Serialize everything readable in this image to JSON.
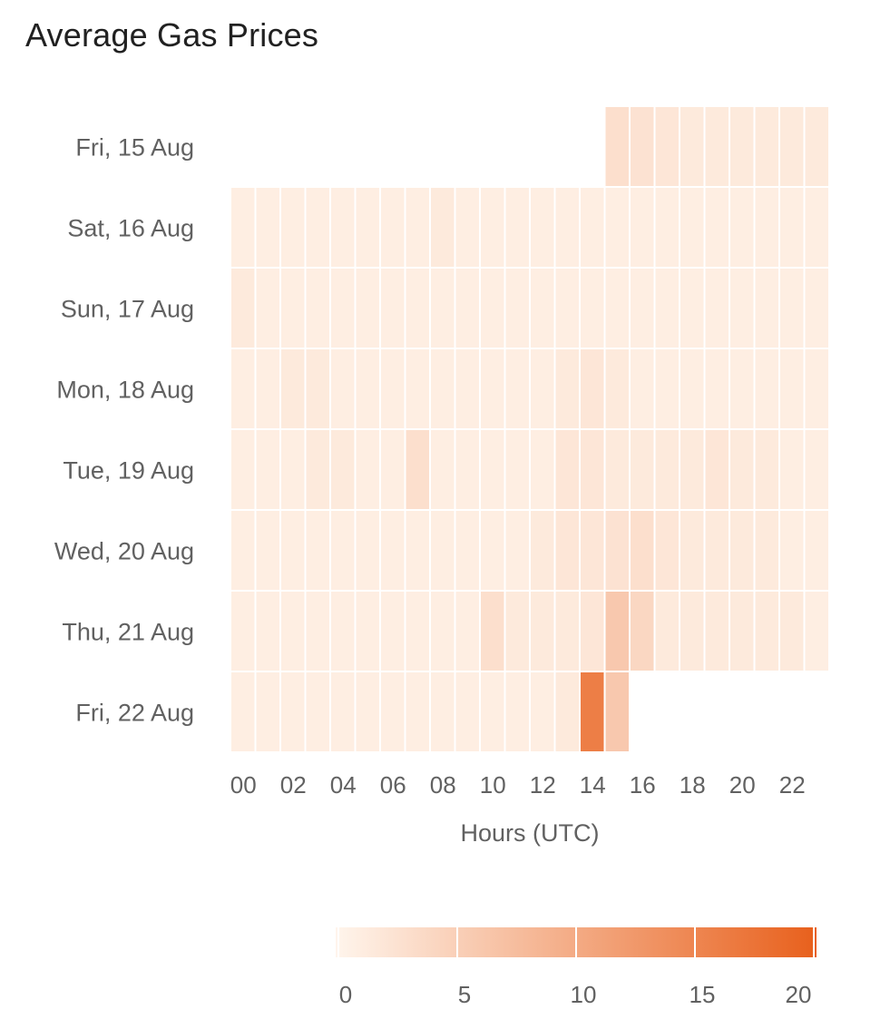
{
  "title": "Average Gas Prices",
  "chart_data": {
    "type": "heatmap",
    "title": "Average Gas Prices",
    "xlabel": "Hours (UTC)",
    "ylabel": "",
    "x_categories": [
      "00",
      "01",
      "02",
      "03",
      "04",
      "05",
      "06",
      "07",
      "08",
      "09",
      "10",
      "11",
      "12",
      "13",
      "14",
      "15",
      "16",
      "17",
      "18",
      "19",
      "20",
      "21",
      "22",
      "23"
    ],
    "x_tick_labels": [
      "00",
      "02",
      "04",
      "06",
      "08",
      "10",
      "12",
      "14",
      "16",
      "18",
      "20",
      "22"
    ],
    "y_categories": [
      "Fri, 15 Aug",
      "Sat, 16 Aug",
      "Sun, 17 Aug",
      "Mon, 18 Aug",
      "Tue, 19 Aug",
      "Wed, 20 Aug",
      "Thu, 21 Aug",
      "Fri, 22 Aug"
    ],
    "values": [
      [
        null,
        null,
        null,
        null,
        null,
        null,
        null,
        null,
        null,
        null,
        null,
        null,
        null,
        null,
        null,
        3,
        2.5,
        2,
        1.5,
        1.5,
        1.5,
        1.5,
        1.5,
        1.5
      ],
      [
        1,
        1,
        1,
        1,
        1,
        1,
        1,
        1,
        1.5,
        1,
        1,
        1,
        1,
        1,
        1,
        1,
        1,
        1,
        1,
        1,
        1,
        1,
        1,
        1
      ],
      [
        1.5,
        1,
        1,
        1,
        1,
        1,
        1,
        1,
        1,
        1,
        1,
        1,
        1,
        1,
        1,
        1,
        1,
        1,
        1,
        1,
        1,
        1,
        1,
        1
      ],
      [
        1,
        1,
        1.5,
        1.5,
        1,
        1,
        1,
        1,
        1,
        1,
        1,
        1,
        1,
        1.5,
        2,
        1.5,
        1,
        1,
        1,
        1,
        1,
        1,
        1,
        1
      ],
      [
        1,
        1,
        1,
        1.5,
        1.5,
        1,
        1,
        3,
        1,
        1,
        1,
        1,
        1,
        2,
        2,
        1.5,
        1.5,
        1.5,
        1.5,
        2,
        1.5,
        1.5,
        1,
        1
      ],
      [
        1,
        1,
        1,
        1,
        1,
        1,
        1,
        1,
        1,
        1,
        1,
        1,
        1.5,
        2,
        2,
        2.5,
        3,
        2,
        1.5,
        1.5,
        1.5,
        1.5,
        1,
        1
      ],
      [
        1,
        1,
        1,
        1,
        1,
        1,
        1,
        1,
        1,
        1,
        3,
        1.5,
        1.5,
        1.5,
        2,
        6,
        4,
        1.5,
        1.5,
        1.5,
        1.5,
        1.5,
        1.5,
        1
      ],
      [
        1,
        1,
        1,
        1,
        1,
        1,
        1,
        1,
        1,
        1,
        1,
        1,
        1,
        1.5,
        16,
        6,
        null,
        null,
        null,
        null,
        null,
        null,
        null,
        null
      ]
    ],
    "colorscale": {
      "min": 0,
      "max": 20,
      "ticks": [
        0,
        5,
        10,
        15,
        20
      ],
      "color_low": "#fff5ec",
      "color_high": "#e8601c"
    },
    "legend_position": "bottom",
    "grid": false
  }
}
